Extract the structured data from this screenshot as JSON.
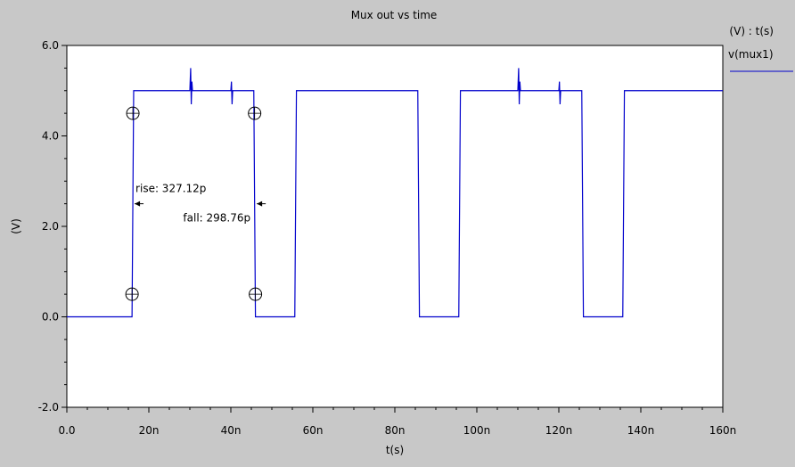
{
  "chart_data": {
    "type": "line",
    "title": "Mux out vs time",
    "xlabel": "t(s)",
    "ylabel": "(V)",
    "axis_units_label": "(V) : t(s)",
    "xlim": [
      0,
      160
    ],
    "ylim": [
      -2,
      6
    ],
    "x_unit": "ns",
    "x_ticks": [
      0,
      20,
      40,
      60,
      80,
      100,
      120,
      140,
      160
    ],
    "x_tick_labels": [
      "0.0",
      "20n",
      "40n",
      "60n",
      "80n",
      "100n",
      "120n",
      "140n",
      "160n"
    ],
    "y_ticks": [
      -2,
      0,
      2,
      4,
      6
    ],
    "y_tick_labels": [
      "-2.0",
      "0.0",
      "2.0",
      "4.0",
      "6.0"
    ],
    "grid": false,
    "legend_position": "right",
    "series": [
      {
        "name": "v(mux1)",
        "color": "#0000cc",
        "x": [
          0,
          15.9,
          16.1,
          16.3,
          30.0,
          30.2,
          30.35,
          30.5,
          30.65,
          40.0,
          40.15,
          40.3,
          40.45,
          45.6,
          45.8,
          46.0,
          55.6,
          55.8,
          56.0,
          85.6,
          85.8,
          86.0,
          95.6,
          95.8,
          96.0,
          110.0,
          110.2,
          110.35,
          110.5,
          110.65,
          120.0,
          120.15,
          120.3,
          120.45,
          125.6,
          125.8,
          126.0,
          135.6,
          135.8,
          136.0,
          160
        ],
        "y": [
          0,
          0,
          2.5,
          5,
          5,
          5.5,
          4.7,
          5.2,
          5,
          5,
          5.2,
          4.7,
          5,
          5,
          2.5,
          0,
          0,
          2.5,
          5,
          5,
          2.5,
          0,
          0,
          2.5,
          5,
          5,
          5.5,
          4.7,
          5.2,
          5,
          5,
          5.2,
          4.7,
          5,
          5,
          2.5,
          0,
          0,
          2.5,
          5,
          5
        ]
      }
    ],
    "markers": [
      {
        "x": 15.9,
        "y": 0.5
      },
      {
        "x": 16.1,
        "y": 4.5
      },
      {
        "x": 45.8,
        "y": 4.5
      },
      {
        "x": 46.0,
        "y": 0.5
      }
    ],
    "annotations": [
      {
        "text": "rise: 327.12p",
        "x": 16.1,
        "y": 2.5,
        "side": "right"
      },
      {
        "text": "fall: 298.76p",
        "x": 45.9,
        "y": 2.5,
        "side": "left"
      }
    ]
  }
}
